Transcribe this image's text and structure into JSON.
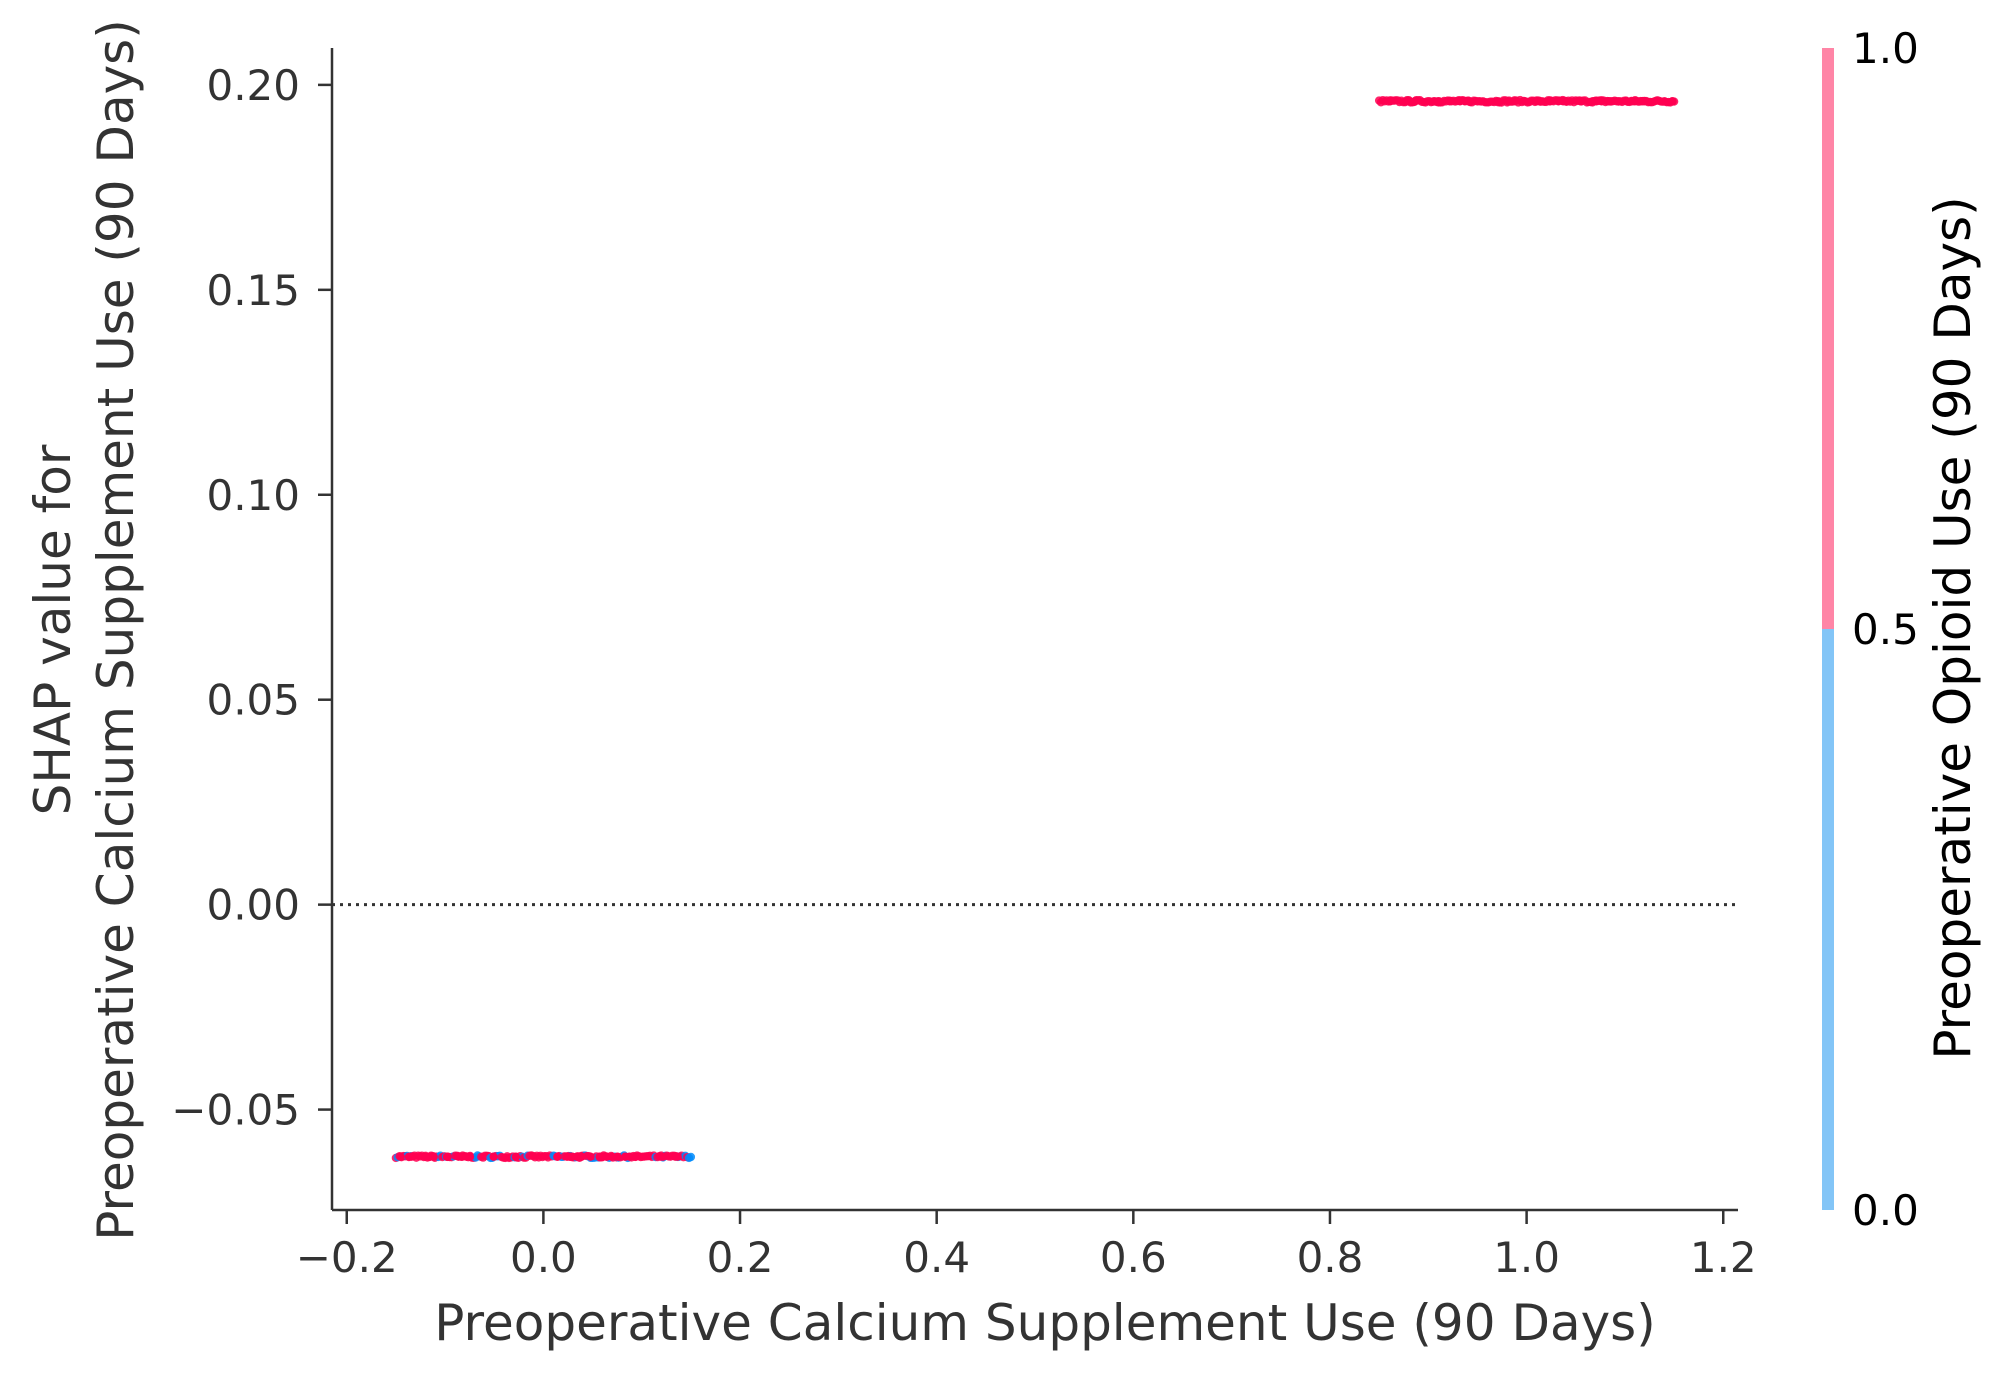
{
  "chart_data": {
    "type": "scatter",
    "title": "",
    "xlabel": "Preoperative Calcium Supplement Use (90 Days)",
    "ylabel_line1": "SHAP value for",
    "ylabel_line2": "Preoperative Calcium Supplement Use (90 Days)",
    "xlim": [
      -0.215,
      1.215
    ],
    "ylim": [
      -0.0745,
      0.209
    ],
    "x_ticks": [
      -0.2,
      0.0,
      0.2,
      0.4,
      0.6,
      0.8,
      1.0,
      1.2
    ],
    "x_tick_labels": [
      "−0.2",
      "0.0",
      "0.2",
      "0.4",
      "0.6",
      "0.8",
      "1.0",
      "1.2"
    ],
    "y_ticks": [
      -0.05,
      0.0,
      0.05,
      0.1,
      0.15,
      0.2
    ],
    "y_tick_labels": [
      "−0.05",
      "0.00",
      "0.05",
      "0.10",
      "0.15",
      "0.20"
    ],
    "zero_line": 0.0,
    "clusters": [
      {
        "feature_value": 0.0,
        "jitter": 0.15,
        "shap_value": -0.0615,
        "mix": "mostly-high"
      },
      {
        "feature_value": 1.0,
        "jitter": 0.15,
        "shap_value": 0.196,
        "mix": "high"
      }
    ],
    "colorbar": {
      "title": "Preoperative Opioid Use (90 Days)",
      "ticks": [
        0.0,
        0.5,
        1.0
      ],
      "tick_labels": [
        "0.0",
        "0.5",
        "1.0"
      ],
      "low_color": "#83c5f7",
      "high_color": "#ff85a6"
    },
    "point_colors": {
      "high": "#ff0051",
      "low": "#008bfb"
    }
  }
}
